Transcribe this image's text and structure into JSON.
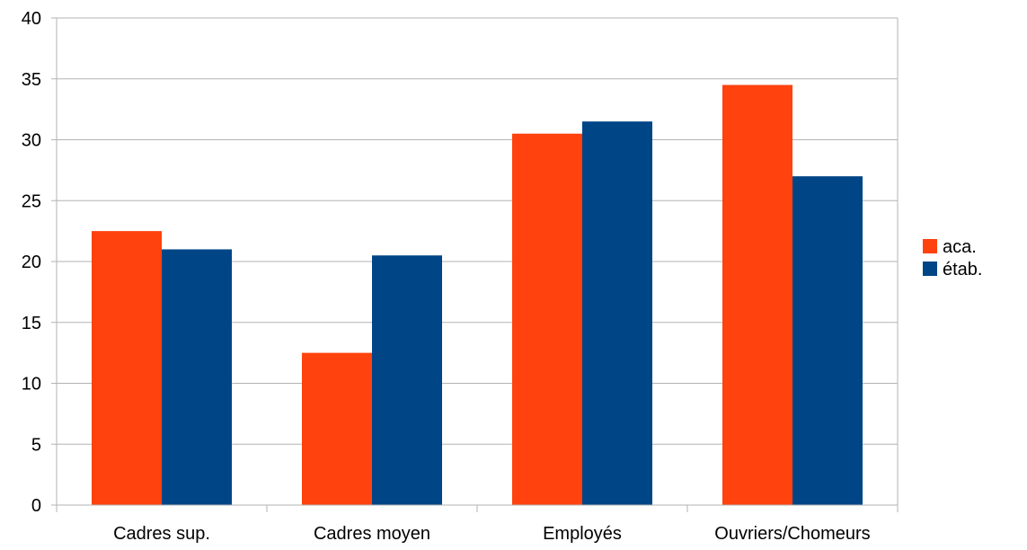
{
  "chart_data": {
    "type": "bar",
    "title": "",
    "xlabel": "",
    "ylabel": "",
    "categories": [
      "Cadres sup.",
      "Cadres moyen",
      "Employés",
      "Ouvriers/Chomeurs"
    ],
    "series": [
      {
        "name": "aca.",
        "values": [
          22.5,
          12.5,
          30.5,
          34.5
        ],
        "color": "#ff420e"
      },
      {
        "name": "étab.",
        "values": [
          21,
          20.5,
          31.5,
          27
        ],
        "color": "#004586"
      }
    ],
    "ylim": [
      0,
      40
    ],
    "yticks": [
      "0",
      "5",
      "10",
      "15",
      "20",
      "25",
      "30",
      "35",
      "40"
    ],
    "ytick_step": 5,
    "grid": true,
    "grid_color": "#b3b3b3",
    "axis_color": "#b3b3b3",
    "legend_position": "right"
  }
}
